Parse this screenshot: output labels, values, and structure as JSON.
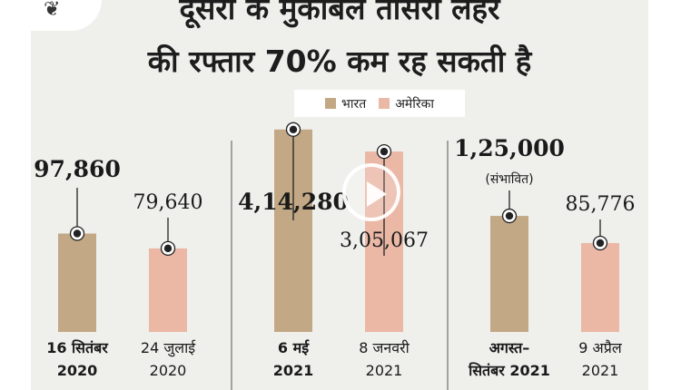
{
  "title": {
    "line1": "दूसरी के मुकाबले तीसरी लहर",
    "line2": "की रफ्तार 70% कम रह सकती है"
  },
  "legend": [
    {
      "label": "भारत",
      "color": "#c3a886"
    },
    {
      "label": "अमेरिका",
      "color": "#ebb8a6"
    }
  ],
  "chart_data": {
    "type": "bar",
    "series": [
      {
        "name": "भारत",
        "color": "#c3a886"
      },
      {
        "name": "अमेरिका",
        "color": "#ebb8a6"
      }
    ],
    "groups": [
      {
        "bars": [
          {
            "series": "भारत",
            "value": 97860,
            "label": "97,860",
            "bold": true,
            "x_label": [
              "16 सितंबर",
              "2020"
            ]
          },
          {
            "series": "अमेरिका",
            "value": 79640,
            "label": "79,640",
            "bold": false,
            "x_label": [
              "24 जुलाई",
              "2020"
            ]
          }
        ]
      },
      {
        "bars": [
          {
            "series": "भारत",
            "value": 414280,
            "label": "4,14,280",
            "bold": true,
            "x_label": [
              "6 मई",
              "2021"
            ]
          },
          {
            "series": "अमेरिका",
            "value": 305067,
            "label": "3,05,067",
            "bold": false,
            "x_label": [
              "8 जनवरी",
              "2021"
            ]
          }
        ]
      },
      {
        "bars": [
          {
            "series": "भारत",
            "value": 125000,
            "label": "1,25,000",
            "sublabel": "(संभावित)",
            "bold": true,
            "x_label": [
              "अगस्त–",
              "सितंबर 2021"
            ]
          },
          {
            "series": "अमेरिका",
            "value": 85776,
            "label": "85,776",
            "bold": false,
            "x_label": [
              "9 अप्रैल",
              "2021"
            ]
          }
        ]
      }
    ]
  },
  "icons": {
    "play": "play-icon",
    "logo": "logo-icon"
  }
}
